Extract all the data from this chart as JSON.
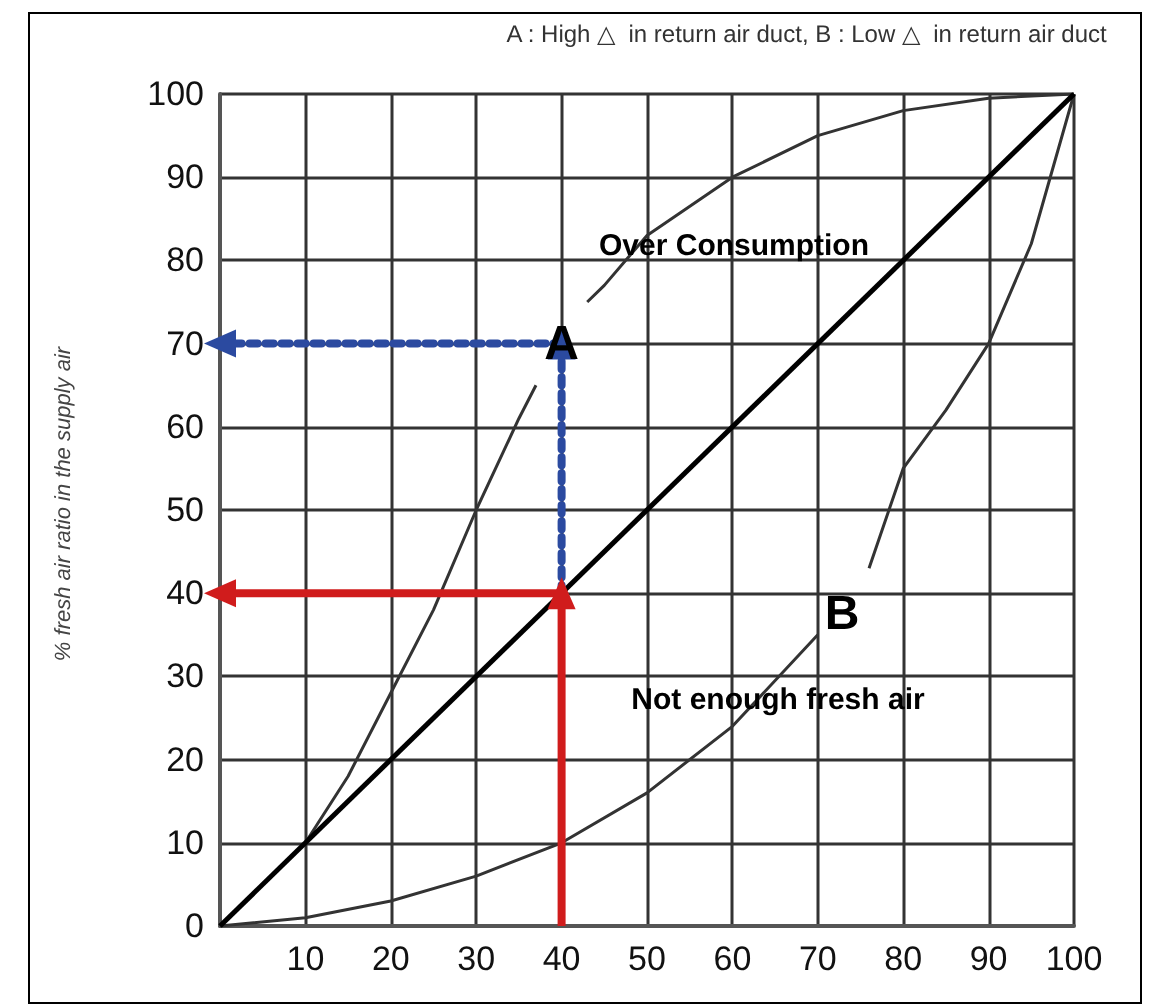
{
  "chart_data": {
    "type": "line",
    "title": "A : High △  in return air duct, B : Low △  in return air duct",
    "ylabel": "% fresh air ratio in the supply air",
    "xlim": [
      0,
      100
    ],
    "ylim": [
      0,
      100
    ],
    "xticks": [
      {
        "value": 0,
        "label": null
      },
      10,
      20,
      30,
      40,
      50,
      60,
      70,
      80,
      90,
      100
    ],
    "yticks": [
      0,
      10,
      20,
      30,
      40,
      50,
      60,
      70,
      80,
      90,
      100
    ],
    "grid": true,
    "marker": "none",
    "series": [
      {
        "color": "#333333",
        "x": [
          0,
          5,
          10,
          15,
          20,
          25,
          30,
          35,
          37,
          40,
          43,
          45,
          50,
          60,
          70,
          80,
          90,
          100
        ],
        "values": [
          0,
          5,
          10,
          18,
          28,
          38,
          50,
          61,
          65,
          null,
          75,
          77,
          83,
          90,
          95,
          98,
          99.5,
          100
        ]
      },
      {
        "color": "#333333",
        "x": [
          0,
          10,
          20,
          30,
          40,
          50,
          60,
          70,
          73,
          76,
          80,
          85,
          90,
          95,
          100
        ],
        "values": [
          0,
          1,
          3,
          6,
          10,
          16,
          24,
          35,
          null,
          43,
          55,
          62,
          70,
          82,
          100
        ]
      },
      {
        "color": "#000000",
        "x": [
          0,
          100
        ],
        "values": [
          0,
          100
        ]
      },
      {
        "color": "#d01c1c",
        "x": [
          40,
          40
        ],
        "values": [
          0,
          40
        ],
        "marker": "triangle"
      },
      {
        "color": "#d01c1c",
        "x": [
          40,
          0
        ],
        "values": [
          40,
          40
        ],
        "marker": "triangle"
      },
      {
        "color": "#2b4aa0",
        "x": [
          40,
          40
        ],
        "values": [
          40,
          70
        ],
        "marker": "triangle",
        "line_style": "dotted"
      },
      {
        "color": "#2b4aa0",
        "x": [
          40,
          0
        ],
        "values": [
          70,
          70
        ],
        "marker": "triangle",
        "line_style": "dotted"
      }
    ],
    "annotations": [
      "Over Consumption",
      "Not enough fresh air",
      {
        "text": "A",
        "x": 40,
        "y": 70
      },
      "B"
    ]
  }
}
